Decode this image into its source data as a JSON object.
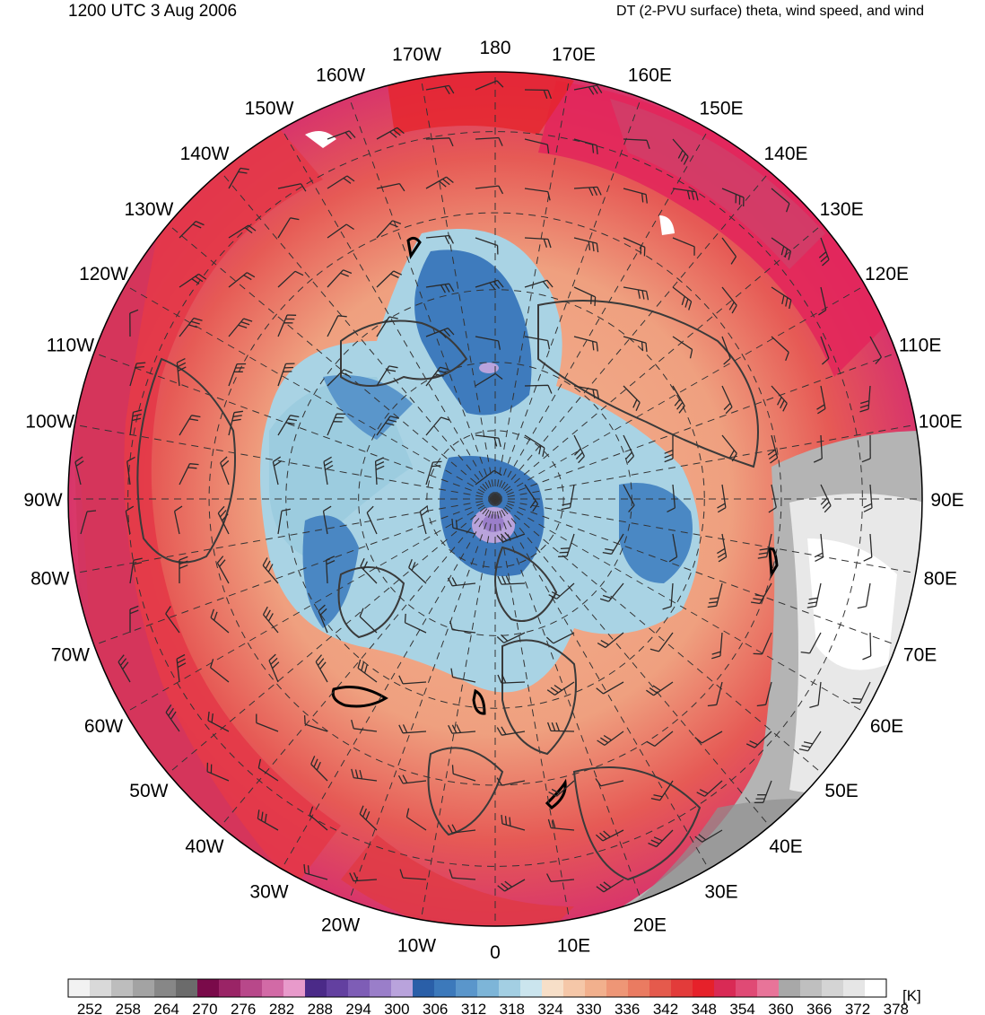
{
  "header": {
    "datetime": "1200 UTC 3 Aug 2006",
    "field": "DT (2-PVU surface) theta, wind speed, and wind"
  },
  "map": {
    "projection": "north polar stereographic",
    "longitude_labels": [
      "180",
      "170E",
      "160E",
      "150E",
      "140E",
      "130E",
      "120E",
      "110E",
      "100E",
      "90E",
      "80E",
      "70E",
      "60E",
      "50E",
      "40E",
      "30E",
      "20E",
      "10E",
      "0",
      "10W",
      "20W",
      "30W",
      "40W",
      "50W",
      "60W",
      "70W",
      "80W",
      "90W",
      "100W",
      "110W",
      "120W",
      "130W",
      "140W",
      "150W",
      "160W",
      "170W"
    ],
    "longitude_degrees": [
      180,
      170,
      160,
      150,
      140,
      130,
      120,
      110,
      100,
      90,
      80,
      70,
      60,
      50,
      40,
      30,
      20,
      10,
      0,
      -10,
      -20,
      -30,
      -40,
      -50,
      -60,
      -70,
      -80,
      -90,
      -100,
      -110,
      -120,
      -130,
      -140,
      -150,
      -160,
      -170
    ]
  },
  "colorbar": {
    "unit": "[K]",
    "tick_labels": [
      "252",
      "258",
      "264",
      "270",
      "276",
      "282",
      "288",
      "294",
      "300",
      "306",
      "312",
      "318",
      "324",
      "330",
      "336",
      "342",
      "348",
      "354",
      "360",
      "366",
      "372",
      "378"
    ],
    "colors": [
      "#f2f2f2",
      "#d9d9d9",
      "#bdbdbd",
      "#a3a3a3",
      "#878787",
      "#6b6b6b",
      "#7a0a4a",
      "#9a2466",
      "#b8488a",
      "#d26aa6",
      "#e89acb",
      "#4b2a88",
      "#6340a0",
      "#7e5db6",
      "#9a7ec9",
      "#b9a3dc",
      "#2a5fa8",
      "#3c79bb",
      "#5a96cb",
      "#7db5d8",
      "#a3cfe3",
      "#cbe5ee",
      "#f7dfc8",
      "#f5c7a8",
      "#f2b08d",
      "#ee9676",
      "#ea7b61",
      "#e55a4c",
      "#e33b3a",
      "#e6212a",
      "#d92a55",
      "#e04a75",
      "#e87499",
      "#a8a8a8",
      "#bfbfbf",
      "#d4d4d4",
      "#e6e6e6",
      "#ffffff"
    ]
  }
}
